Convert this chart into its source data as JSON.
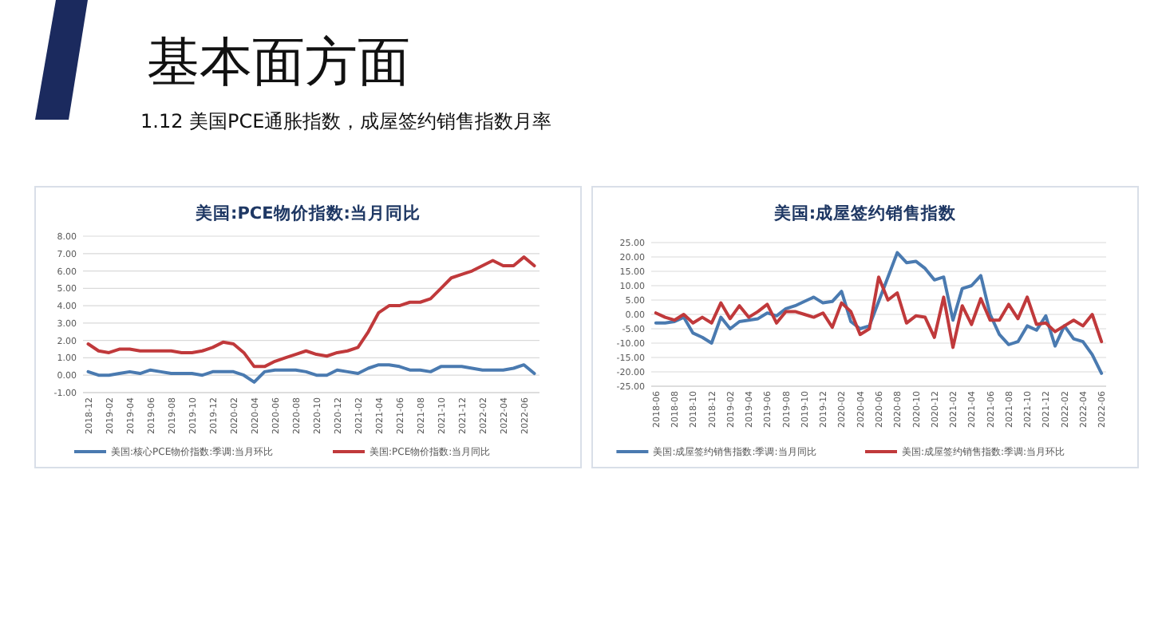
{
  "chart_data": [
    {
      "type": "other",
      "title": "基本面方面",
      "subtitle": "1.12   美国PCE通胀指数，成屋签约销售指数月率"
    },
    {
      "type": "line",
      "title": "美国:PCE物价指数:当月同比",
      "grid": "y",
      "legend": "bottom",
      "categories": [
        "2018-12",
        null,
        "2019-02",
        null,
        "2019-04",
        null,
        "2019-06",
        null,
        "2019-08",
        null,
        "2019-10",
        null,
        "2019-12",
        null,
        "2020-02",
        null,
        "2020-04",
        null,
        "2020-06",
        null,
        "2020-08",
        null,
        "2020-10",
        null,
        "2020-12",
        null,
        "2021-02",
        null,
        "2021-04",
        null,
        "2021-06",
        null,
        "2021-08",
        null,
        "2021-10",
        null,
        "2021-12",
        null,
        "2022-02",
        null,
        "2022-04",
        null,
        "2022-06",
        null
      ],
      "ylim": [
        -1,
        8
      ],
      "yticks": [
        {
          "value": -1,
          "label": "-1.00"
        },
        {
          "value": 0,
          "label": "0.00"
        },
        {
          "value": 1,
          "label": "1.00"
        },
        {
          "value": 2,
          "label": "2.00"
        },
        {
          "value": 3,
          "label": "3.00"
        },
        {
          "value": 4,
          "label": "4.00"
        },
        {
          "value": 5,
          "label": "5.00"
        },
        {
          "value": 6,
          "label": "6.00"
        },
        {
          "value": 7,
          "label": "7.00"
        },
        {
          "value": 8,
          "label": "8.00"
        }
      ],
      "series": [
        {
          "name": "美国:核心PCE物价指数:季调:当月环比",
          "color": "#4a7ab0",
          "values": [
            0.2,
            0.0,
            0.0,
            0.1,
            0.2,
            0.1,
            0.3,
            0.2,
            0.1,
            0.1,
            0.1,
            0.0,
            0.2,
            0.2,
            0.2,
            0.0,
            -0.4,
            0.2,
            0.3,
            0.3,
            0.3,
            0.2,
            0.0,
            0.0,
            0.3,
            0.2,
            0.1,
            0.4,
            0.6,
            0.6,
            0.5,
            0.3,
            0.3,
            0.2,
            0.5,
            0.5,
            0.5,
            0.4,
            0.3,
            0.3,
            0.3,
            0.4,
            0.6,
            0.1
          ]
        },
        {
          "name": "美国:PCE物价指数:当月同比",
          "color": "#c0393b",
          "values": [
            1.8,
            1.4,
            1.3,
            1.5,
            1.5,
            1.4,
            1.4,
            1.4,
            1.4,
            1.3,
            1.3,
            1.4,
            1.6,
            1.9,
            1.8,
            1.3,
            0.5,
            0.5,
            0.8,
            1.0,
            1.2,
            1.4,
            1.2,
            1.1,
            1.3,
            1.4,
            1.6,
            2.5,
            3.6,
            4.0,
            4.0,
            4.2,
            4.2,
            4.4,
            5.0,
            5.6,
            5.8,
            6.0,
            6.3,
            6.6,
            6.3,
            6.3,
            6.8,
            6.3
          ]
        }
      ]
    },
    {
      "type": "line",
      "title": "美国:成屋签约销售指数",
      "grid": "y",
      "legend": "bottom",
      "categories": [
        "2018-06",
        null,
        "2018-08",
        null,
        "2018-10",
        null,
        "2018-12",
        null,
        "2019-02",
        null,
        "2019-04",
        null,
        "2019-06",
        null,
        "2019-08",
        null,
        "2019-10",
        null,
        "2019-12",
        null,
        "2020-02",
        null,
        "2020-04",
        null,
        "2020-06",
        null,
        "2020-08",
        null,
        "2020-10",
        null,
        "2020-12",
        null,
        "2021-02",
        null,
        "2021-04",
        null,
        "2021-06",
        null,
        "2021-08",
        null,
        "2021-10",
        null,
        "2021-12",
        null,
        "2022-02",
        null,
        "2022-04",
        null,
        "2022-06"
      ],
      "ylim": [
        -25,
        25
      ],
      "yticks": [
        {
          "value": -25,
          "label": "-25.00"
        },
        {
          "value": -20,
          "label": "-20.00"
        },
        {
          "value": -15,
          "label": "-15.00"
        },
        {
          "value": -10,
          "label": "-10.00"
        },
        {
          "value": -5,
          "label": "-5.00"
        },
        {
          "value": 0,
          "label": "0.00"
        },
        {
          "value": 5,
          "label": "5.00"
        },
        {
          "value": 10,
          "label": "10.00"
        },
        {
          "value": 15,
          "label": "15.00"
        },
        {
          "value": 20,
          "label": "20.00"
        },
        {
          "value": 25,
          "label": "25.00"
        }
      ],
      "series": [
        {
          "name": "美国:成屋签约销售指数:季调:当月同比",
          "color": "#4a7ab0",
          "values": [
            -3,
            -3,
            -2.5,
            -1,
            -6.5,
            -8,
            -10,
            -1,
            -5,
            -2.5,
            -2,
            -1.5,
            0.5,
            -0.5,
            2,
            3,
            4.5,
            6,
            4,
            4.5,
            8,
            -2.5,
            -5,
            -4,
            4.5,
            13,
            21.5,
            18,
            18.5,
            16,
            12,
            13,
            -2,
            9,
            10,
            13.5,
            0,
            -7,
            -10.5,
            -9.5,
            -4,
            -5.5,
            -0.5,
            -11,
            -4,
            -8.5,
            -9.5,
            -14,
            -20.5
          ]
        },
        {
          "name": "美国:成屋签约销售指数:季调:当月环比",
          "color": "#c0393b",
          "values": [
            0.5,
            -1,
            -2,
            0,
            -3,
            -1,
            -3,
            4,
            -1.5,
            3,
            -1,
            1,
            3.5,
            -3,
            1,
            1,
            0,
            -1,
            0.5,
            -4.5,
            4,
            1,
            -7,
            -5,
            13,
            5,
            7.5,
            -3,
            -0.5,
            -1,
            -8,
            6,
            -11.5,
            3,
            -3.5,
            5.5,
            -2,
            -2,
            3.5,
            -1.5,
            6,
            -3.5,
            -3,
            -6,
            -4,
            -2,
            -4,
            0,
            -9.5
          ]
        }
      ]
    }
  ]
}
